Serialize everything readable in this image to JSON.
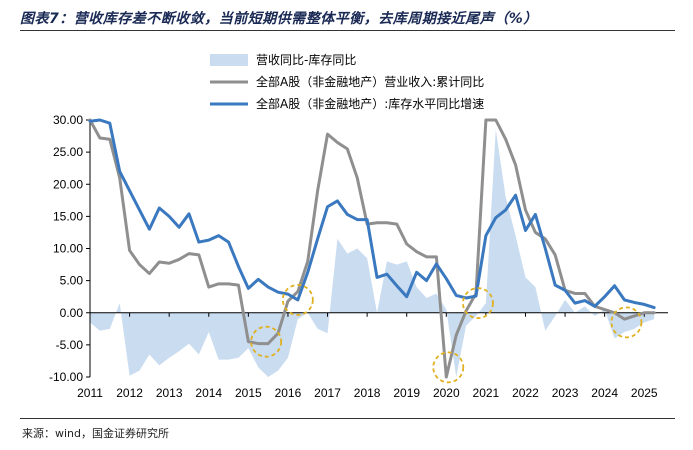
{
  "title": "图表7：营收库存差不断收敛，当前短期供需整体平衡，去库周期接近尾声（%）",
  "source": "来源：wind，国金证券研究所",
  "chart_data": {
    "type": "line",
    "title": "图表7：营收库存差不断收敛，当前短期供需整体平衡，去库周期接近尾声（%）",
    "xlabel": "",
    "ylabel": "",
    "ylim": [
      -10,
      30
    ],
    "yticks": [
      "30.00",
      "25.00",
      "20.00",
      "15.00",
      "10.00",
      "5.00",
      "0.00",
      "-5.00",
      "-10.00"
    ],
    "xlim": [
      2011.0,
      2025.6
    ],
    "xticks": [
      "2011",
      "2012",
      "2013",
      "2014",
      "2015",
      "2016",
      "2017",
      "2018",
      "2019",
      "2020",
      "2021",
      "2022",
      "2023",
      "2024",
      "2025"
    ],
    "grid": false,
    "legend_position": "top",
    "series": [
      {
        "name": "营收同比-库存同比",
        "style": "area",
        "color": "#c9dcf0",
        "x": [
          2011.0,
          2011.25,
          2011.5,
          2011.75,
          2012.0,
          2012.25,
          2012.5,
          2012.75,
          2013.0,
          2013.25,
          2013.5,
          2013.75,
          2014.0,
          2014.25,
          2014.5,
          2014.75,
          2015.0,
          2015.25,
          2015.5,
          2015.75,
          2016.0,
          2016.25,
          2016.5,
          2016.75,
          2017.0,
          2017.25,
          2017.5,
          2017.75,
          2018.0,
          2018.25,
          2018.5,
          2018.75,
          2019.0,
          2019.25,
          2019.5,
          2019.75,
          2020.0,
          2020.25,
          2020.5,
          2020.75,
          2021.0,
          2021.25,
          2021.5,
          2021.75,
          2022.0,
          2022.25,
          2022.5,
          2022.75,
          2023.0,
          2023.25,
          2023.5,
          2023.75,
          2024.0,
          2024.25,
          2024.5,
          2024.75,
          2025.0,
          2025.25
        ],
        "y": [
          -1.5,
          -2.8,
          -2.5,
          1.5,
          -9.8,
          -9.0,
          -6.5,
          -8.2,
          -7.0,
          -6.0,
          -4.8,
          -6.5,
          -3.0,
          -7.3,
          -7.3,
          -7.0,
          -5.5,
          -8.5,
          -10.0,
          -9.0,
          -7.0,
          -1.0,
          0.0,
          -2.5,
          -3.2,
          11.5,
          9.2,
          10.0,
          8.5,
          0.0,
          8.0,
          7.5,
          8.0,
          4.0,
          2.3,
          3.0,
          0.5,
          -10.0,
          -2.0,
          -0.5,
          1.5,
          28.5,
          18.0,
          12.0,
          5.5,
          4.0,
          -2.8,
          -0.5,
          2.0,
          0.0,
          1.0,
          -0.5,
          0.5,
          -4.0,
          -3.0,
          -2.5,
          -1.5,
          -1.0
        ]
      },
      {
        "name": "全部A股（非金融地产）营业收入:累计同比",
        "style": "line",
        "color": "#8f8f8f",
        "x": [
          2011.0,
          2011.25,
          2011.5,
          2011.75,
          2012.0,
          2012.25,
          2012.5,
          2012.75,
          2013.0,
          2013.25,
          2013.5,
          2013.75,
          2014.0,
          2014.25,
          2014.5,
          2014.75,
          2015.0,
          2015.25,
          2015.5,
          2015.75,
          2016.0,
          2016.25,
          2016.5,
          2016.75,
          2017.0,
          2017.25,
          2017.5,
          2017.75,
          2018.0,
          2018.25,
          2018.5,
          2018.75,
          2019.0,
          2019.25,
          2019.5,
          2019.75,
          2020.0,
          2020.25,
          2020.5,
          2020.75,
          2021.0,
          2021.25,
          2021.5,
          2021.75,
          2022.0,
          2022.25,
          2022.5,
          2022.75,
          2023.0,
          2023.25,
          2023.5,
          2023.75,
          2024.0,
          2024.25,
          2024.5,
          2024.75,
          2025.0,
          2025.25
        ],
        "y": [
          30.0,
          27.2,
          27.0,
          21.0,
          9.7,
          7.5,
          6.1,
          7.9,
          7.7,
          8.3,
          9.2,
          9.0,
          4.0,
          4.5,
          4.5,
          4.3,
          -4.5,
          -4.8,
          -4.8,
          -3.2,
          1.8,
          3.3,
          8.0,
          19.0,
          27.8,
          26.5,
          25.5,
          21.0,
          13.8,
          14.0,
          14.0,
          13.8,
          10.7,
          9.5,
          8.7,
          8.7,
          -10.0,
          -3.5,
          0.3,
          3.0,
          30.0,
          30.0,
          27.0,
          23.0,
          16.0,
          12.5,
          11.5,
          9.0,
          3.5,
          3.0,
          3.0,
          1.0,
          0.5,
          0.0,
          -1.0,
          -0.5,
          0.0,
          0.0
        ]
      },
      {
        "name": "全部A股（非金融地产）:库存水平同比增速",
        "style": "line",
        "color": "#3a78bf",
        "x": [
          2011.0,
          2011.25,
          2011.5,
          2011.75,
          2012.0,
          2012.25,
          2012.5,
          2012.75,
          2013.0,
          2013.25,
          2013.5,
          2013.75,
          2014.0,
          2014.25,
          2014.5,
          2014.75,
          2015.0,
          2015.25,
          2015.5,
          2015.75,
          2016.0,
          2016.25,
          2016.5,
          2016.75,
          2017.0,
          2017.25,
          2017.5,
          2017.75,
          2018.0,
          2018.25,
          2018.5,
          2018.75,
          2019.0,
          2019.25,
          2019.5,
          2019.75,
          2020.0,
          2020.25,
          2020.5,
          2020.75,
          2021.0,
          2021.25,
          2021.5,
          2021.75,
          2022.0,
          2022.25,
          2022.5,
          2022.75,
          2023.0,
          2023.25,
          2023.5,
          2023.75,
          2024.0,
          2024.25,
          2024.5,
          2024.75,
          2025.0,
          2025.25
        ],
        "y": [
          29.8,
          30.0,
          29.5,
          22.0,
          19.0,
          16.0,
          13.0,
          16.3,
          15.0,
          13.3,
          15.4,
          11.0,
          11.3,
          12.0,
          11.0,
          7.2,
          3.8,
          5.2,
          4.0,
          3.2,
          2.9,
          2.0,
          6.3,
          11.5,
          16.5,
          17.4,
          15.3,
          14.5,
          14.5,
          5.5,
          6.0,
          4.2,
          2.5,
          6.3,
          5.0,
          7.6,
          5.3,
          2.7,
          2.3,
          2.6,
          12.0,
          14.8,
          16.0,
          18.3,
          12.8,
          15.3,
          10.0,
          4.3,
          3.5,
          1.5,
          1.9,
          1.0,
          2.5,
          4.2,
          2.0,
          1.6,
          1.3,
          0.8
        ]
      }
    ],
    "annotations": [
      {
        "type": "dashed-circle",
        "color": "#e0b020",
        "x": 2016.25,
        "y": 2.0
      },
      {
        "type": "dashed-circle",
        "color": "#e0b020",
        "x": 2015.45,
        "y": -4.5
      },
      {
        "type": "dashed-circle",
        "color": "#e0b020",
        "x": 2020.05,
        "y": -8.5
      },
      {
        "type": "dashed-circle",
        "color": "#e0b020",
        "x": 2020.8,
        "y": 1.5
      },
      {
        "type": "dashed-circle",
        "color": "#e0b020",
        "x": 2024.55,
        "y": -1.5
      }
    ]
  }
}
